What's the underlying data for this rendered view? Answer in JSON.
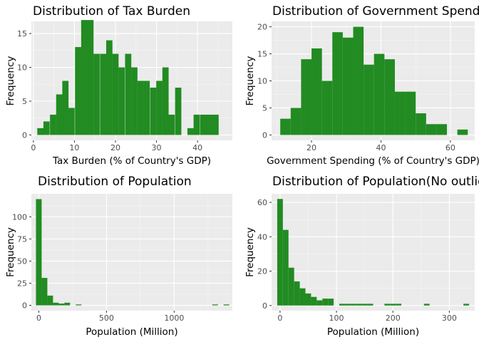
{
  "colors": {
    "bar": "#228b22",
    "panel_bg": "#ebebeb",
    "grid_major": "#ffffff",
    "grid_minor": "#f5f5f5",
    "tick": "#333333"
  },
  "chart_data": [
    {
      "type": "bar",
      "title": "Distribution of Tax Burden",
      "xlabel": "Tax Burden (% of Country's GDP)",
      "ylabel": "Frequency",
      "xlim": [
        -0.5,
        48.5
      ],
      "ylim": [
        -0.8,
        16.8
      ],
      "xticks": [
        0,
        10,
        20,
        30,
        40
      ],
      "yticks": [
        0,
        5,
        10,
        15
      ],
      "bin_width": 1.52,
      "bins": [
        {
          "x": 1.7,
          "count": 1
        },
        {
          "x": 3.2,
          "count": 2
        },
        {
          "x": 4.8,
          "count": 3
        },
        {
          "x": 6.3,
          "count": 6
        },
        {
          "x": 7.8,
          "count": 8
        },
        {
          "x": 9.3,
          "count": 4
        },
        {
          "x": 10.9,
          "count": 13
        },
        {
          "x": 12.4,
          "count": 17
        },
        {
          "x": 13.9,
          "count": 17
        },
        {
          "x": 15.4,
          "count": 12
        },
        {
          "x": 17.0,
          "count": 12
        },
        {
          "x": 18.5,
          "count": 14
        },
        {
          "x": 20.0,
          "count": 12
        },
        {
          "x": 21.5,
          "count": 10
        },
        {
          "x": 23.1,
          "count": 12
        },
        {
          "x": 24.6,
          "count": 10
        },
        {
          "x": 26.1,
          "count": 8
        },
        {
          "x": 27.6,
          "count": 8
        },
        {
          "x": 29.2,
          "count": 7
        },
        {
          "x": 30.7,
          "count": 8
        },
        {
          "x": 32.2,
          "count": 10
        },
        {
          "x": 33.7,
          "count": 3
        },
        {
          "x": 35.3,
          "count": 7
        },
        {
          "x": 36.8,
          "count": 0
        },
        {
          "x": 38.3,
          "count": 1
        },
        {
          "x": 39.8,
          "count": 3
        },
        {
          "x": 41.4,
          "count": 3
        },
        {
          "x": 42.9,
          "count": 3
        },
        {
          "x": 44.4,
          "count": 3
        }
      ]
    },
    {
      "type": "bar",
      "title": "Distribution of Government Spending",
      "xlabel": "Government Spending (% of Country's GDP)",
      "ylabel": "Frequency",
      "xlim": [
        8.5,
        67
      ],
      "ylim": [
        -1,
        21
      ],
      "xticks": [
        20,
        40,
        60
      ],
      "yticks": [
        0,
        5,
        10,
        15,
        20
      ],
      "bin_width": 3.0,
      "bins": [
        {
          "x": 12.5,
          "count": 3
        },
        {
          "x": 15.5,
          "count": 5
        },
        {
          "x": 18.5,
          "count": 14
        },
        {
          "x": 21.5,
          "count": 16
        },
        {
          "x": 24.5,
          "count": 10
        },
        {
          "x": 27.5,
          "count": 19
        },
        {
          "x": 30.5,
          "count": 18
        },
        {
          "x": 33.5,
          "count": 20
        },
        {
          "x": 36.5,
          "count": 13
        },
        {
          "x": 39.5,
          "count": 15
        },
        {
          "x": 42.5,
          "count": 14
        },
        {
          "x": 45.5,
          "count": 8
        },
        {
          "x": 48.5,
          "count": 8
        },
        {
          "x": 51.5,
          "count": 4
        },
        {
          "x": 54.5,
          "count": 2
        },
        {
          "x": 57.5,
          "count": 2
        },
        {
          "x": 60.5,
          "count": 0
        },
        {
          "x": 63.5,
          "count": 1
        }
      ]
    },
    {
      "type": "bar",
      "title": "Distribution of Population",
      "xlabel": "Population (Million)",
      "ylabel": "Frequency",
      "xlim": [
        -55,
        1430
      ],
      "ylim": [
        -6,
        126
      ],
      "xticks": [
        0,
        500,
        1000
      ],
      "yticks": [
        0,
        25,
        50,
        75,
        100
      ],
      "bin_width": 42,
      "bins": [
        {
          "x": 0,
          "count": 120
        },
        {
          "x": 42,
          "count": 31
        },
        {
          "x": 84,
          "count": 11
        },
        {
          "x": 126,
          "count": 3
        },
        {
          "x": 168,
          "count": 2
        },
        {
          "x": 210,
          "count": 3
        },
        {
          "x": 294,
          "count": 1
        },
        {
          "x": 1302,
          "count": 1
        },
        {
          "x": 1386,
          "count": 1
        }
      ]
    },
    {
      "type": "bar",
      "title": "Distribution of Population(No outliers)",
      "xlabel": "Population (Million)",
      "ylabel": "Frequency",
      "xlim": [
        -15,
        345
      ],
      "ylim": [
        -3,
        65
      ],
      "xticks": [
        0,
        100,
        200,
        300
      ],
      "yticks": [
        0,
        20,
        40,
        60
      ],
      "bin_width": 10,
      "bins": [
        {
          "x": 0,
          "count": 62
        },
        {
          "x": 10,
          "count": 44
        },
        {
          "x": 20,
          "count": 22
        },
        {
          "x": 30,
          "count": 14
        },
        {
          "x": 40,
          "count": 10
        },
        {
          "x": 50,
          "count": 7
        },
        {
          "x": 60,
          "count": 5
        },
        {
          "x": 70,
          "count": 3
        },
        {
          "x": 80,
          "count": 4
        },
        {
          "x": 90,
          "count": 4
        },
        {
          "x": 110,
          "count": 1
        },
        {
          "x": 120,
          "count": 1
        },
        {
          "x": 130,
          "count": 1
        },
        {
          "x": 140,
          "count": 1
        },
        {
          "x": 150,
          "count": 1
        },
        {
          "x": 160,
          "count": 1
        },
        {
          "x": 190,
          "count": 1
        },
        {
          "x": 200,
          "count": 1
        },
        {
          "x": 210,
          "count": 1
        },
        {
          "x": 260,
          "count": 1
        },
        {
          "x": 330,
          "count": 1
        }
      ]
    }
  ]
}
